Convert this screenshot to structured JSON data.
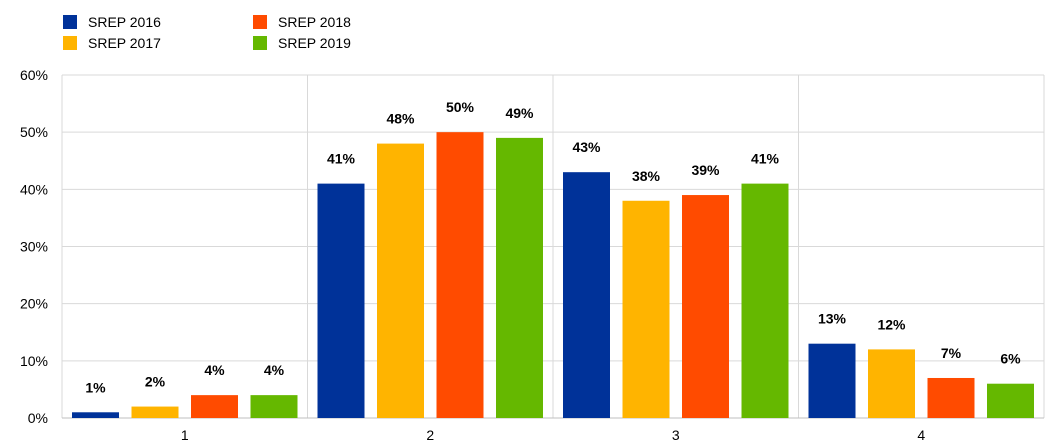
{
  "chart_data": {
    "type": "bar",
    "categories": [
      "1",
      "2",
      "3",
      "4"
    ],
    "series": [
      {
        "name": "SREP 2016",
        "values": [
          1,
          41,
          43,
          13
        ],
        "color": "#003299"
      },
      {
        "name": "SREP 2017",
        "values": [
          2,
          48,
          38,
          12
        ],
        "color": "#FFB400"
      },
      {
        "name": "SREP 2018",
        "values": [
          4,
          50,
          39,
          7
        ],
        "color": "#FF4B00"
      },
      {
        "name": "SREP 2019",
        "values": [
          4,
          49,
          41,
          6
        ],
        "color": "#65B800"
      }
    ],
    "value_labels": [
      [
        "1%",
        "41%",
        "43%",
        "13%"
      ],
      [
        "2%",
        "48%",
        "38%",
        "12%"
      ],
      [
        "4%",
        "50%",
        "39%",
        "7%"
      ],
      [
        "4%",
        "49%",
        "41%",
        "6%"
      ]
    ],
    "y_ticks": [
      "0%",
      "10%",
      "20%",
      "30%",
      "40%",
      "50%",
      "60%"
    ],
    "ylim": [
      0,
      60
    ],
    "legend": "top-left",
    "grid": true
  }
}
